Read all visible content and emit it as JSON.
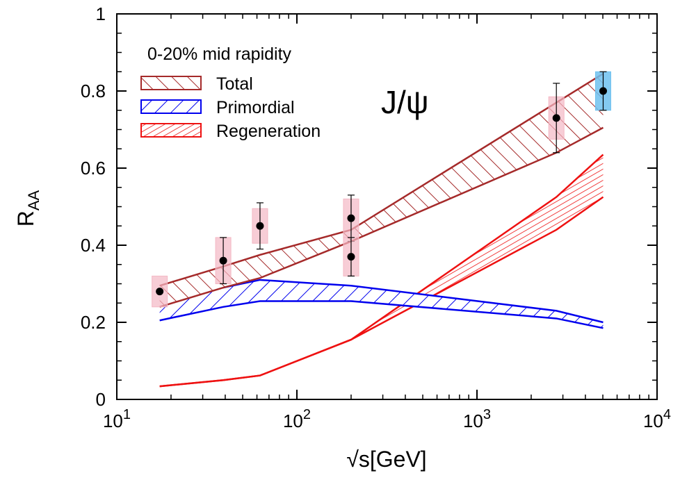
{
  "chart_data": {
    "type": "line",
    "title": "",
    "annotation": "J/ψ",
    "xlabel": "√s[GeV]",
    "ylabel": "R",
    "ylabel_sub": "AA",
    "xscale": "log",
    "xlim": [
      10,
      10000
    ],
    "ylim": [
      0,
      1
    ],
    "x_tick_labels": [
      {
        "base": "10",
        "exp": "1"
      },
      {
        "base": "10",
        "exp": "2"
      },
      {
        "base": "10",
        "exp": "3"
      },
      {
        "base": "10",
        "exp": "4"
      }
    ],
    "y_tick_labels": [
      "0",
      "0.2",
      "0.4",
      "0.6",
      "0.8",
      "1"
    ],
    "y_ticks": [
      0,
      0.2,
      0.4,
      0.6,
      0.8,
      1.0
    ],
    "legend": {
      "title": "0-20% mid rapidity",
      "placement": "top-left",
      "entries": [
        {
          "name": "Total",
          "color": "#a52a2a"
        },
        {
          "name": "Primordial",
          "color": "#0000ee"
        },
        {
          "name": "Regeneration",
          "color": "#ee1111"
        }
      ]
    },
    "bands": [
      {
        "name": "Total",
        "color": "#a52a2a",
        "x": [
          17.3,
          39,
          62.4,
          200,
          2760,
          5020
        ],
        "lower": [
          0.24,
          0.29,
          0.315,
          0.41,
          0.64,
          0.705
        ],
        "upper": [
          0.295,
          0.345,
          0.375,
          0.44,
          0.77,
          0.845
        ],
        "hatch": "backslash"
      },
      {
        "name": "Primordial",
        "color": "#0000ee",
        "x": [
          17.3,
          39,
          62.4,
          200,
          2760,
          5020
        ],
        "lower": [
          0.205,
          0.24,
          0.255,
          0.255,
          0.21,
          0.185
        ],
        "upper": [
          0.265,
          0.29,
          0.31,
          0.295,
          0.23,
          0.2
        ],
        "hatch": "slash"
      },
      {
        "name": "Regeneration",
        "color": "#ee1111",
        "x": [
          17.3,
          39,
          62.4,
          200,
          2760,
          5020
        ],
        "lower": [
          0.034,
          0.05,
          0.062,
          0.155,
          0.44,
          0.525
        ],
        "upper": [
          0.034,
          0.05,
          0.062,
          0.155,
          0.525,
          0.635
        ],
        "hatch": "dense"
      }
    ],
    "data_points": [
      {
        "x": 17.3,
        "y": 0.28,
        "stat": 0.0,
        "sys": 0.04,
        "box_color": "#f4b8c4"
      },
      {
        "x": 39,
        "y": 0.36,
        "stat": 0.06,
        "sys": 0.06,
        "box_color": "#f4b8c4"
      },
      {
        "x": 62.4,
        "y": 0.45,
        "stat": 0.06,
        "sys": 0.045,
        "box_color": "#f4b8c4"
      },
      {
        "x": 200,
        "y": 0.47,
        "stat": 0.06,
        "sys": 0.05,
        "box_color": "#f4b8c4"
      },
      {
        "x": 200,
        "y": 0.37,
        "stat": 0.05,
        "sys": 0.05,
        "box_color": "#f4b8c4"
      },
      {
        "x": 2760,
        "y": 0.73,
        "stat": 0.09,
        "sys": 0.055,
        "box_color": "#f4b8c4"
      },
      {
        "x": 5020,
        "y": 0.8,
        "stat": 0.05,
        "sys": 0.05,
        "box_color": "#6ec1ef"
      }
    ]
  }
}
